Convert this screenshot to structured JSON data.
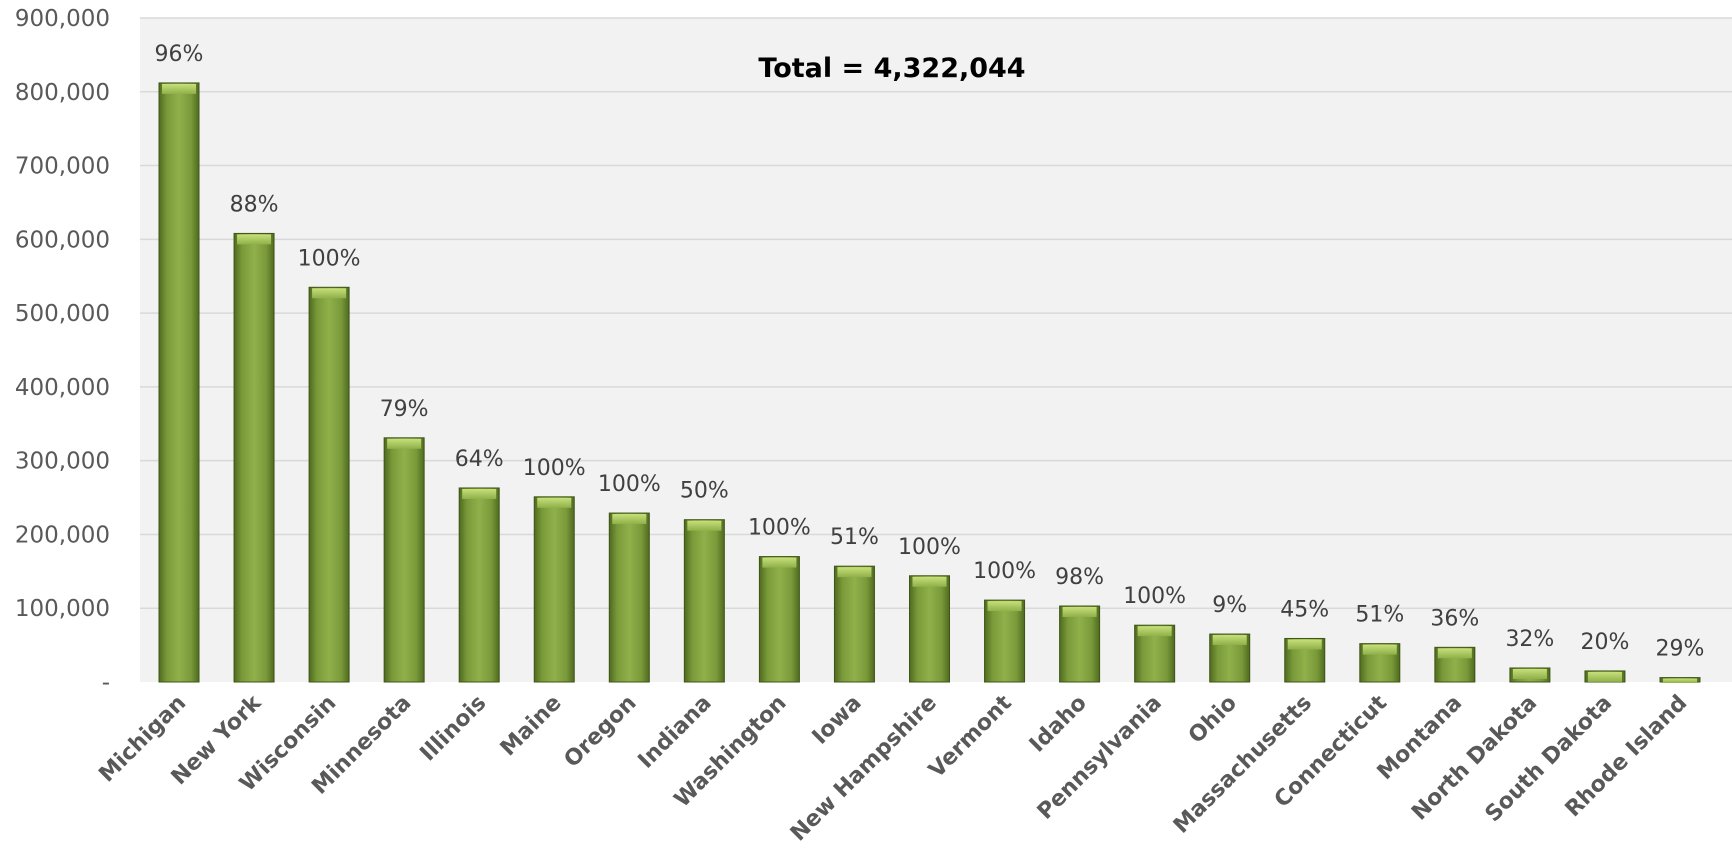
{
  "chart_data": {
    "type": "bar",
    "categories": [
      "Michigan",
      "New York",
      "Wisconsin",
      "Minnesota",
      "Illinois",
      "Maine",
      "Oregon",
      "Indiana",
      "Washington",
      "Iowa",
      "New Hampshire",
      "Vermont",
      "Idaho",
      "Pennsylvania",
      "Ohio",
      "Massachusetts",
      "Connecticut",
      "Montana",
      "North Dakota",
      "South Dakota",
      "Rhode Island"
    ],
    "values": [
      812000,
      608000,
      535000,
      331000,
      263000,
      251000,
      229000,
      220000,
      170000,
      157000,
      144000,
      111000,
      103000,
      77000,
      65000,
      59000,
      52000,
      47000,
      19000,
      15000,
      6000
    ],
    "data_labels": [
      "96%",
      "88%",
      "100%",
      "79%",
      "64%",
      "100%",
      "100%",
      "50%",
      "100%",
      "51%",
      "100%",
      "100%",
      "98%",
      "100%",
      "9%",
      "45%",
      "51%",
      "36%",
      "32%",
      "20%",
      "29%"
    ],
    "annotation": "Total = 4,322,044",
    "ylim": [
      0,
      900000
    ],
    "yticks": [
      0,
      100000,
      200000,
      300000,
      400000,
      500000,
      600000,
      700000,
      800000,
      900000
    ],
    "ytick_labels": [
      "-",
      "100,000",
      "200,000",
      "300,000",
      "400,000",
      "500,000",
      "600,000",
      "700,000",
      "800,000",
      "900,000"
    ],
    "grid": true,
    "colors": {
      "bar": "#7a9a3a",
      "bar_light": "#a9c860",
      "bar_dark": "#4f6a1f",
      "plot_background": "#f2f2f2",
      "gridline": "#d9d9d9"
    }
  }
}
